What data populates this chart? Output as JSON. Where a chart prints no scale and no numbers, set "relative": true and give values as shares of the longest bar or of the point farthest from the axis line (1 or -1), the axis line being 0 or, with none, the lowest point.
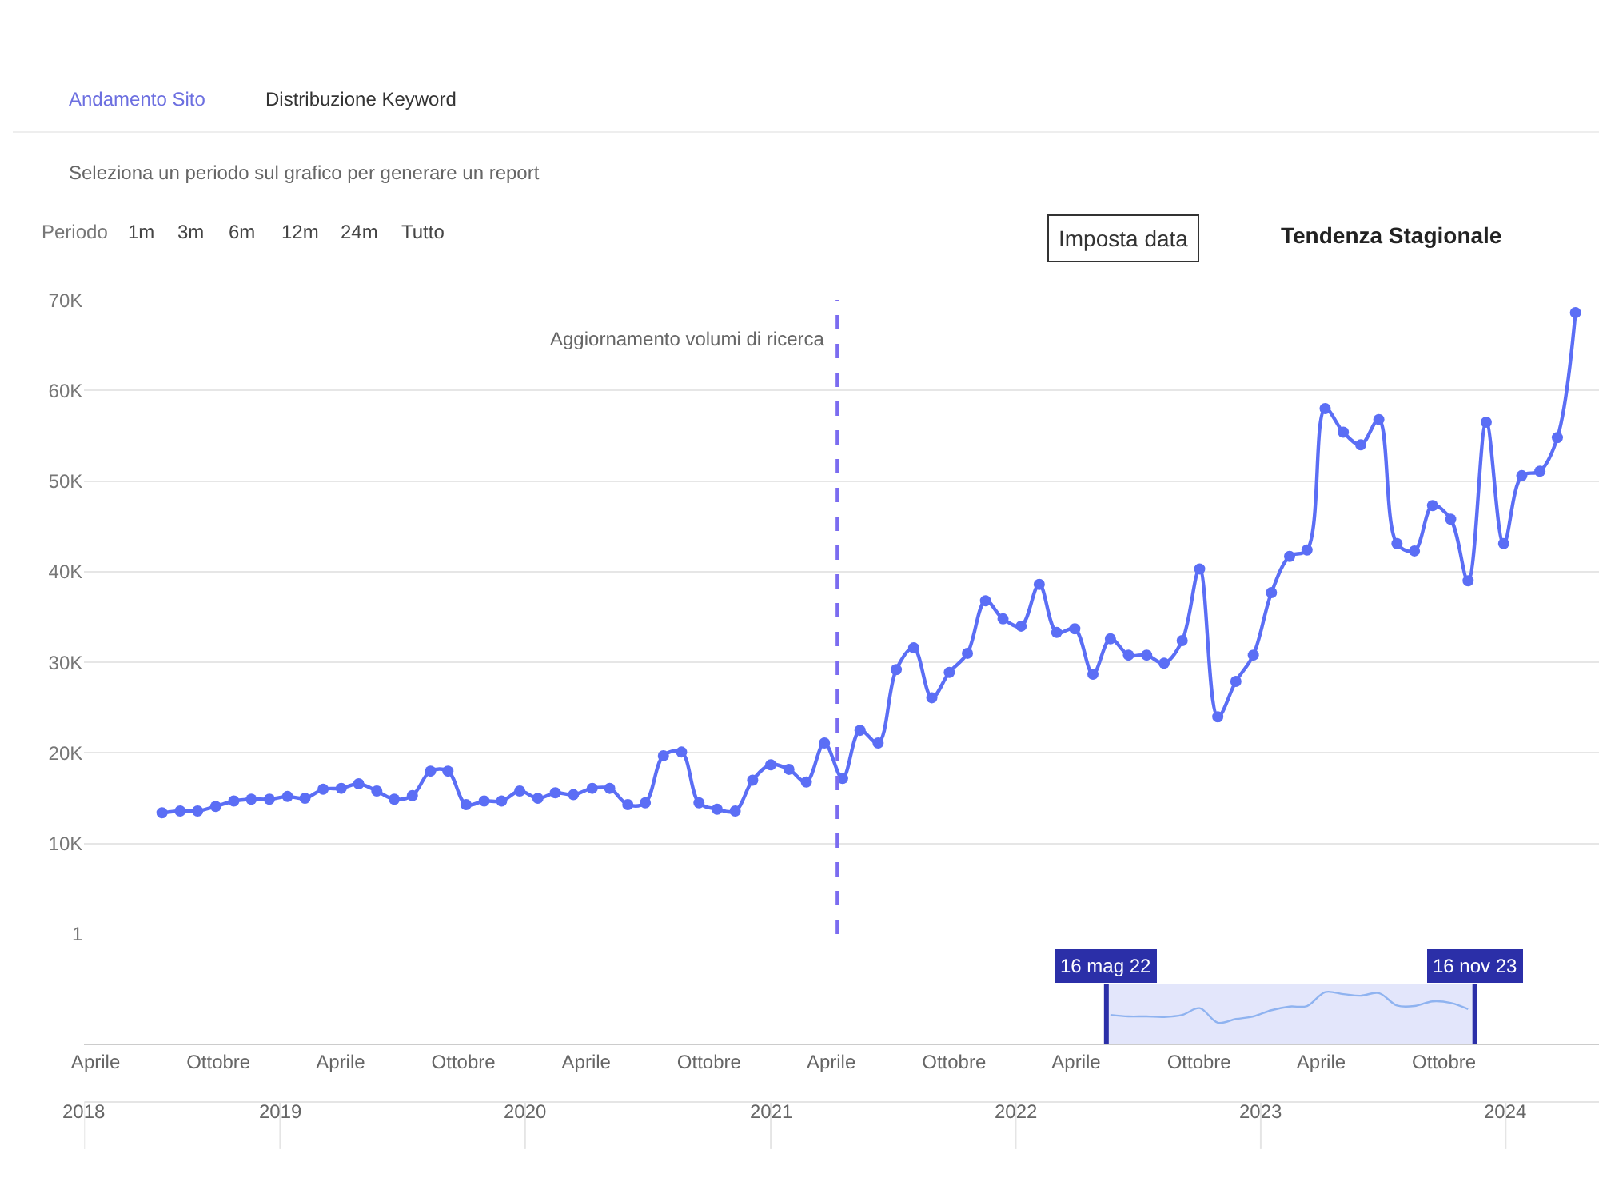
{
  "chart_data": [
    {
      "type": "line",
      "x": [
        "2018-07-09",
        "2018-08-05",
        "2018-08-31",
        "2018-09-27",
        "2018-10-24",
        "2018-11-19",
        "2018-12-16",
        "2019-01-12",
        "2019-02-07",
        "2019-03-06",
        "2019-04-02",
        "2019-04-28",
        "2019-05-25",
        "2019-06-20",
        "2019-07-17",
        "2019-08-13",
        "2019-09-08",
        "2019-10-05",
        "2019-11-01",
        "2019-11-27",
        "2019-12-24",
        "2020-01-20",
        "2020-02-15",
        "2020-03-13",
        "2020-04-10",
        "2020-05-06",
        "2020-06-02",
        "2020-06-28",
        "2020-07-25",
        "2020-08-21",
        "2020-09-16",
        "2020-10-13",
        "2020-11-09",
        "2020-12-05",
        "2021-01-01",
        "2021-01-28",
        "2021-02-23",
        "2021-03-22",
        "2021-04-18",
        "2021-05-14",
        "2021-06-10",
        "2021-07-07",
        "2021-08-02",
        "2021-08-29",
        "2021-09-24",
        "2021-10-21",
        "2021-11-17",
        "2021-12-13",
        "2022-01-09",
        "2022-02-05",
        "2022-03-03",
        "2022-03-30",
        "2022-04-26",
        "2022-05-22",
        "2022-06-18",
        "2022-07-15",
        "2022-08-10",
        "2022-09-06",
        "2022-10-02",
        "2022-10-29",
        "2022-11-25",
        "2022-12-21",
        "2023-01-17",
        "2023-02-13",
        "2023-03-11",
        "2023-04-07",
        "2023-05-04",
        "2023-05-30",
        "2023-06-26",
        "2023-07-23",
        "2023-08-18",
        "2023-09-14",
        "2023-10-11",
        "2023-11-06",
        "2023-12-03",
        "2023-12-29",
        "2024-01-25",
        "2024-02-21",
        "2024-03-18",
        "2024-04-14"
      ],
      "series": [
        {
          "color": "#5b6ef5",
          "values": [
            13400,
            13600,
            13600,
            14100,
            14700,
            14900,
            14900,
            15200,
            15000,
            16000,
            16100,
            16600,
            15800,
            14900,
            15300,
            18000,
            18000,
            14300,
            14700,
            14700,
            15800,
            15000,
            15600,
            15400,
            16100,
            16100,
            14300,
            14500,
            19700,
            20100,
            14500,
            13800,
            13600,
            17000,
            18700,
            18200,
            16800,
            21100,
            17200,
            22500,
            21100,
            29200,
            31600,
            26100,
            28900,
            31000,
            36800,
            34800,
            34000,
            38600,
            33300,
            33700,
            28700,
            32600,
            30800,
            30800,
            29900,
            32400,
            40300,
            24000,
            27900,
            30800,
            37700,
            41700,
            42400,
            58000,
            55400,
            54000,
            56800,
            43100,
            42300,
            47300,
            45800,
            39000,
            56500,
            43100,
            50600,
            51100,
            54800,
            68600
          ]
        }
      ],
      "xlim": [
        "2018-03-15",
        "2024-05-19"
      ],
      "ylim": [
        1,
        70000
      ],
      "yticks": [
        1,
        {
          "value": 10000,
          "label": "10K"
        },
        {
          "value": 20000,
          "label": "20K"
        },
        {
          "value": 30000,
          "label": "30K"
        },
        {
          "value": 40000,
          "label": "40K"
        },
        {
          "value": 50000,
          "label": "50K"
        },
        {
          "value": 60000,
          "label": "60K"
        },
        {
          "value": 70000,
          "label": "70K"
        }
      ],
      "tick_labels": "y",
      "grid": "y",
      "marker": "circle",
      "line_style": "solid",
      "ref_lines": [
        {
          "axis": "x",
          "value": "2021-04-10",
          "label": "Aggiornamento volumi di ricerca",
          "color": "#7b6cf0",
          "line_style": "dashed"
        }
      ],
      "annotations": [
        "Andamento Sito",
        "Distribuzione Keyword",
        "Seleziona un periodo sul grafico per generare un report",
        "Periodo",
        "1m",
        "3m",
        "6m",
        "12m",
        "24m",
        "Tutto",
        "Imposta data",
        "Tendenza Stagionale"
      ]
    },
    {
      "type": "line",
      "relative": true,
      "x": [
        "2022-05-22",
        "2022-06-18",
        "2022-07-15",
        "2022-08-10",
        "2022-09-06",
        "2022-10-02",
        "2022-10-29",
        "2022-11-25",
        "2022-12-21",
        "2023-01-17",
        "2023-02-13",
        "2023-03-11",
        "2023-04-07",
        "2023-05-04",
        "2023-05-30",
        "2023-06-26",
        "2023-07-23",
        "2023-08-18",
        "2023-09-14",
        "2023-10-11",
        "2023-11-06"
      ],
      "series": [
        {
          "color": "#8fb3f0",
          "values": [
            0.56,
            0.53,
            0.53,
            0.52,
            0.56,
            0.69,
            0.41,
            0.48,
            0.53,
            0.65,
            0.72,
            0.73,
            1,
            0.96,
            0.93,
            0.98,
            0.74,
            0.73,
            0.82,
            0.79,
            0.67
          ]
        }
      ],
      "xlim": [
        "2018-03-15",
        "2024-05-19"
      ],
      "xticks": [
        {
          "value": "2018-04-01",
          "label": "Aprile"
        },
        {
          "value": "2018-10-01",
          "label": "Ottobre"
        },
        {
          "value": "2019-04-01",
          "label": "Aprile"
        },
        {
          "value": "2019-10-01",
          "label": "Ottobre"
        },
        {
          "value": "2020-04-01",
          "label": "Aprile"
        },
        {
          "value": "2020-10-01",
          "label": "Ottobre"
        },
        {
          "value": "2021-04-01",
          "label": "Aprile"
        },
        {
          "value": "2021-10-01",
          "label": "Ottobre"
        },
        {
          "value": "2022-04-01",
          "label": "Aprile"
        },
        {
          "value": "2022-10-01",
          "label": "Ottobre"
        },
        {
          "value": "2023-04-01",
          "label": "Aprile"
        },
        {
          "value": "2023-10-01",
          "label": "Ottobre"
        }
      ],
      "x2lim": [
        "2018-03-15",
        "2024-05-19"
      ],
      "x2ticks": [
        {
          "value": "2018-03-15",
          "label": "2018"
        },
        {
          "value": "2019-01-01",
          "label": "2019"
        },
        {
          "value": "2020-01-01",
          "label": "2020"
        },
        {
          "value": "2021-01-01",
          "label": "2021"
        },
        {
          "value": "2022-01-01",
          "label": "2022"
        },
        {
          "value": "2023-01-01",
          "label": "2023"
        },
        {
          "value": "2024-01-01",
          "label": "2024"
        }
      ],
      "bands": [
        {
          "axis": "x",
          "from": "2022-05-16",
          "to": "2023-11-16",
          "color": "#e3e6fb"
        }
      ],
      "ref_lines": [
        {
          "axis": "x",
          "value": "2022-05-16",
          "label": "16 mag 22",
          "color": "#2b2fa8"
        },
        {
          "axis": "x",
          "value": "2023-11-16",
          "label": "16 nov 23",
          "color": "#2b2fa8"
        }
      ]
    }
  ]
}
